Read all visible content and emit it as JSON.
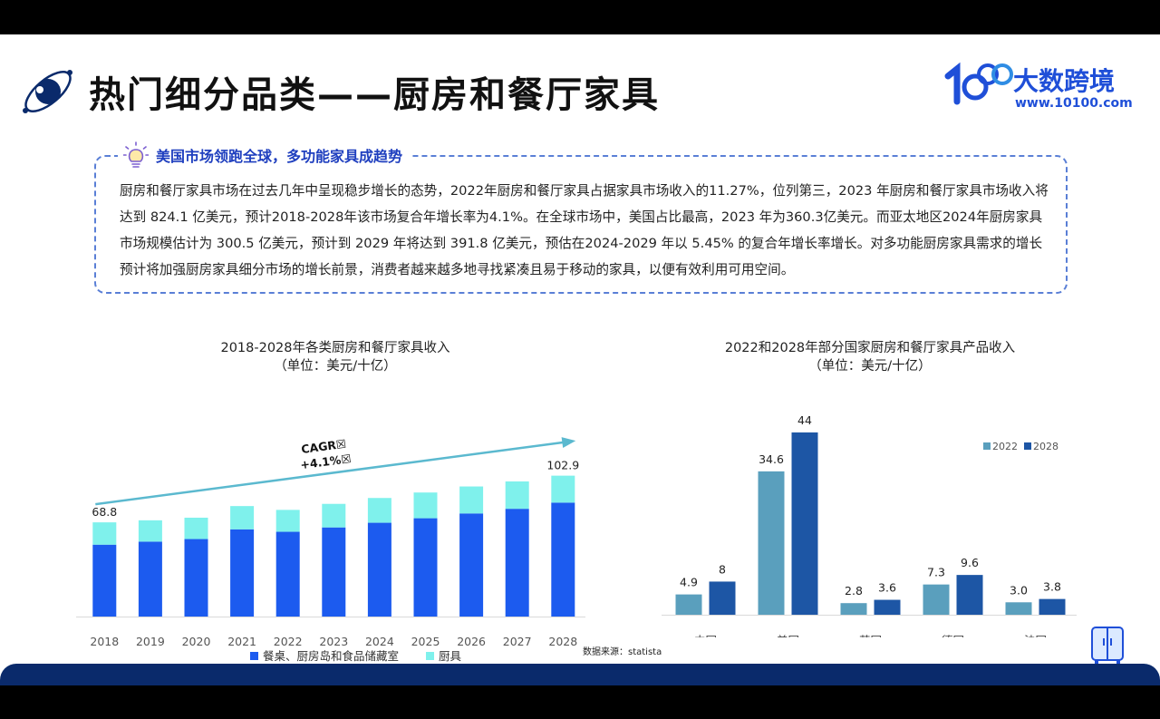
{
  "header": {
    "title": "热门细分品类——厨房和餐厅家具",
    "brand_name": "大数跨境",
    "brand_url": "www.10100.com"
  },
  "insight": {
    "heading": "美国市场领跑全球，多功能家具成趋势",
    "body": "厨房和餐厅家具市场在过去几年中呈现稳步增长的态势，2022年厨房和餐厅家具占据家具市场收入的11.27%，位列第三，2023 年厨房和餐厅家具市场收入将达到 824.1 亿美元，预计2018-2028年该市场复合年增长率为4.1%。在全球市场中，美国占比最高，2023 年为360.3亿美元。而亚太地区2024年厨房家具市场规模估计为 300.5 亿美元，预计到 2029 年将达到 391.8 亿美元，预估在2024-2029 年以 5.45% 的复合年增长率增长。对多功能厨房家具需求的增长预计将加强厨房家具细分市场的增长前景，消费者越来越多地寻找紧凑且易于移动的家具，以便有效利用可用空间。"
  },
  "source": "数据来源：statista",
  "colors": {
    "dark_blue": "#1c5bef",
    "cyan": "#7ff1ec",
    "series2022": "#5a9fbd",
    "series2028": "#1d56a5",
    "arrow": "#5bb9cf",
    "brand": "#1f4fd8"
  },
  "chart_data": [
    {
      "type": "bar",
      "stacked": true,
      "title": "2018-2028年各类厨房和餐厅家具收入",
      "subtitle": "（单位：美元/十亿）",
      "categories": [
        "2018",
        "2019",
        "2020",
        "2021",
        "2022",
        "2023",
        "2024",
        "2025",
        "2026",
        "2027",
        "2028"
      ],
      "series": [
        {
          "name": "餐桌、厨房岛和食品储藏室",
          "values": [
            52.5,
            54.7,
            56.6,
            63.7,
            61.9,
            65.1,
            68.5,
            71.8,
            75.3,
            78.7,
            83.2
          ]
        },
        {
          "name": "厨具",
          "values": [
            16.3,
            15.6,
            15.6,
            17.0,
            16.0,
            17.2,
            18.1,
            18.8,
            19.7,
            20.0,
            19.7
          ]
        }
      ],
      "data_labels": {
        "2018": "68.8",
        "2028": "102.9"
      },
      "annotation": "CAGR☒\n+4.1%☒",
      "legend": "bottom",
      "ylim": [
        0,
        110
      ]
    },
    {
      "type": "bar",
      "title": "2022和2028年部分国家厨房和餐厅家具产品收入",
      "subtitle": "（单位：美元/十亿）",
      "categories": [
        "中国",
        "美国",
        "英国",
        "德国",
        "法国"
      ],
      "series": [
        {
          "name": "2022",
          "values": [
            4.9,
            34.6,
            2.8,
            7.3,
            3.0
          ],
          "labels": [
            "4.9",
            "34.6",
            "2.8",
            "7.3",
            "3.0"
          ]
        },
        {
          "name": "2028",
          "values": [
            8,
            44,
            3.6,
            9.6,
            3.8
          ],
          "labels": [
            "8",
            "44",
            "3.6",
            "9.6",
            "3.8"
          ]
        }
      ],
      "legend": "top-right",
      "ylim": [
        0,
        50
      ]
    }
  ]
}
